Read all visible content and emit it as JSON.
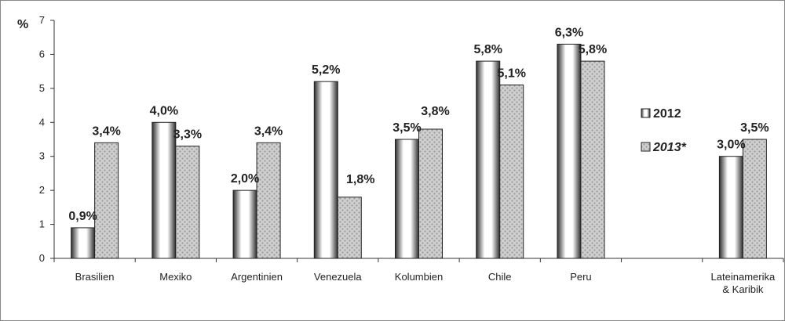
{
  "chart_data": {
    "type": "bar",
    "ylabel": "%",
    "ylim": [
      0,
      7
    ],
    "yticks": [
      "0",
      "1",
      "2",
      "3",
      "4",
      "5",
      "6",
      "7"
    ],
    "grid": false,
    "legend_position": "right",
    "categories": [
      "Brasilien",
      "Mexiko",
      "Argentinien",
      "Venezuela",
      "Kolumbien",
      "Chile",
      "Peru",
      "",
      "Lateinamerika & Karibik"
    ],
    "series": [
      {
        "name": "2012",
        "values": [
          0.9,
          4.0,
          2.0,
          5.2,
          3.5,
          5.8,
          6.3,
          null,
          3.0
        ],
        "labels": [
          "0,9%",
          "4,0%",
          "2,0%",
          "5,2%",
          "3,5%",
          "5,8%",
          "6,3%",
          "",
          "3,0%"
        ]
      },
      {
        "name": "2013*",
        "values": [
          3.4,
          3.3,
          3.4,
          1.8,
          3.8,
          5.1,
          5.8,
          null,
          3.5
        ],
        "labels": [
          "3,4%",
          "3,3%",
          "3,4%",
          "1,8%",
          "3,8%",
          "5,1%",
          "5,8%",
          "",
          "3,5%"
        ]
      }
    ]
  },
  "colors": {
    "bar_2012_dark": "#3a3a3a",
    "bar_2012_light": "#ffffff",
    "bar_2013_base": "#c8c8c8",
    "bar_2013_pattern": "#9a9a9a",
    "axis": "#333333",
    "frame": "#888888"
  }
}
